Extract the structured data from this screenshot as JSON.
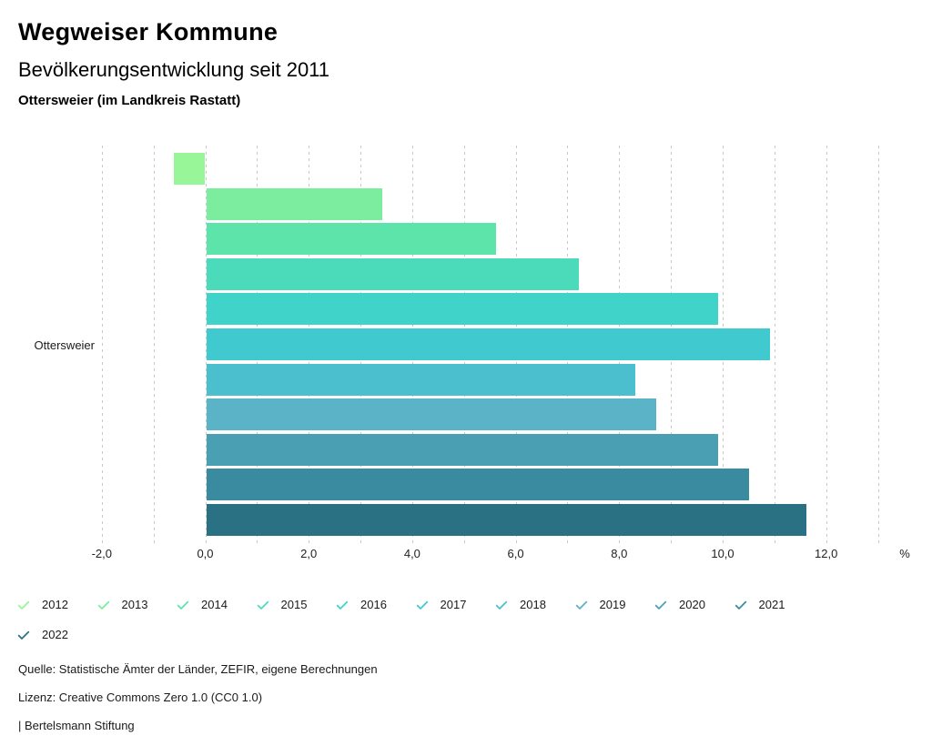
{
  "header": {
    "title": "Wegweiser Kommune"
  },
  "chart_data": {
    "type": "bar",
    "orientation": "horizontal",
    "title": "Bevölkerungsentwicklung seit 2011",
    "subtitle": "Ottersweier (im Landkreis Rastatt)",
    "category": "Ottersweier",
    "unit": "%",
    "xlim": [
      -2,
      13
    ],
    "grid": true,
    "gridline_step": 1,
    "legend_position": "bottom",
    "x_major_ticks": [
      -2,
      0,
      2,
      4,
      6,
      8,
      10,
      12
    ],
    "x_tick_labels": [
      "-2,0",
      "0,0",
      "2,0",
      "4,0",
      "6,0",
      "8,0",
      "10,0",
      "12,0"
    ],
    "series": [
      {
        "name": "2012",
        "value": -0.6,
        "color": "#98F698"
      },
      {
        "name": "2013",
        "value": 3.4,
        "color": "#7CEC9F"
      },
      {
        "name": "2014",
        "value": 5.6,
        "color": "#5DE4AB"
      },
      {
        "name": "2015",
        "value": 7.2,
        "color": "#4BDBBA"
      },
      {
        "name": "2016",
        "value": 9.9,
        "color": "#40D3C9"
      },
      {
        "name": "2017",
        "value": 10.9,
        "color": "#41C9D0"
      },
      {
        "name": "2018",
        "value": 8.3,
        "color": "#4BBFCE"
      },
      {
        "name": "2019",
        "value": 8.7,
        "color": "#5AB3C7"
      },
      {
        "name": "2020",
        "value": 9.9,
        "color": "#4A9FB3"
      },
      {
        "name": "2021",
        "value": 10.5,
        "color": "#3A8B9F"
      },
      {
        "name": "2022",
        "value": 11.6,
        "color": "#2A7183"
      }
    ]
  },
  "footer": {
    "source": "Quelle: Statistische Ämter der Länder, ZEFIR, eigene Berechnungen",
    "license": "Lizenz: Creative Commons Zero 1.0 (CC0 1.0)",
    "attribution": "| Bertelsmann Stiftung"
  }
}
